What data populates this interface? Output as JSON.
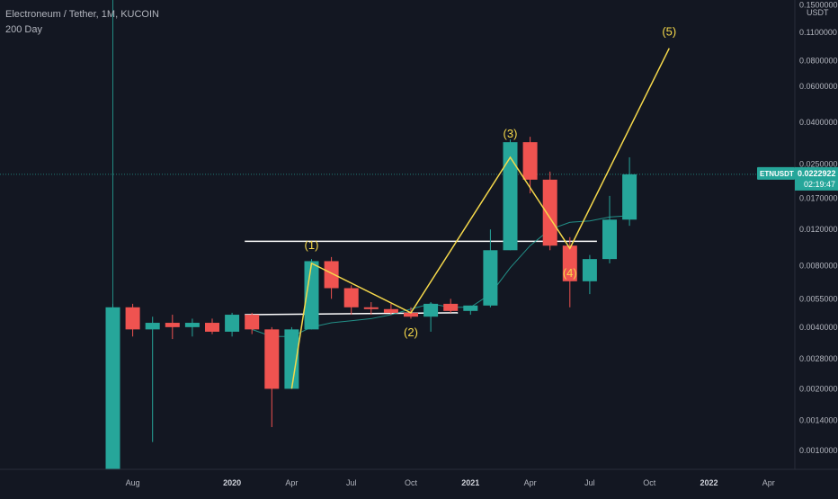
{
  "header": {
    "title": "Electroneum / Tether, 1M, KUCOIN",
    "indicator": "200 Day"
  },
  "price_axis": {
    "currency": "USDT",
    "ticks": [
      "0.1500000",
      "0.1100000",
      "0.0800000",
      "0.0600000",
      "0.0400000",
      "0.0250000",
      "0.0170000",
      "0.0120000",
      "0.0080000",
      "0.0055000",
      "0.0040000",
      "0.0028000",
      "0.0020000",
      "0.0014000",
      "0.0010000"
    ],
    "symbol_tag": "ETNUSDT",
    "last_price": "0.0222922",
    "countdown": "02:19:47"
  },
  "time_axis": {
    "labels": [
      "Aug",
      "2020",
      "Apr",
      "Jul",
      "Oct",
      "2021",
      "Apr",
      "Jul",
      "Oct",
      "2022",
      "Apr"
    ],
    "bold": [
      "2020",
      "2021",
      "2022"
    ]
  },
  "colors": {
    "background": "#131722",
    "up": "#26a69a",
    "down": "#ef5350",
    "ma": "#26a69a",
    "wave": "#f6d94b",
    "level": "#ffffff",
    "text": "#b2b5be"
  },
  "chart_data": {
    "type": "candlestick",
    "timeframe": "1M",
    "scale": "log",
    "candles": [
      {
        "t": "2019-07",
        "o": 0.00068,
        "h": 0.0052,
        "l": 0.00068,
        "c": 0.005
      },
      {
        "t": "2019-08",
        "o": 0.005,
        "h": 0.0052,
        "l": 0.0036,
        "c": 0.0039
      },
      {
        "t": "2019-09",
        "o": 0.0039,
        "h": 0.0045,
        "l": 0.0011,
        "c": 0.0042
      },
      {
        "t": "2019-10",
        "o": 0.0042,
        "h": 0.0046,
        "l": 0.0035,
        "c": 0.004
      },
      {
        "t": "2019-11",
        "o": 0.004,
        "h": 0.0044,
        "l": 0.0036,
        "c": 0.0042
      },
      {
        "t": "2019-12",
        "o": 0.0042,
        "h": 0.0044,
        "l": 0.0037,
        "c": 0.0038
      },
      {
        "t": "2020-01",
        "o": 0.0038,
        "h": 0.0047,
        "l": 0.0036,
        "c": 0.0046
      },
      {
        "t": "2020-02",
        "o": 0.0046,
        "h": 0.0047,
        "l": 0.0037,
        "c": 0.0039
      },
      {
        "t": "2020-03",
        "o": 0.0039,
        "h": 0.004,
        "l": 0.0013,
        "c": 0.002
      },
      {
        "t": "2020-04",
        "o": 0.002,
        "h": 0.004,
        "l": 0.002,
        "c": 0.0039
      },
      {
        "t": "2020-05",
        "o": 0.0039,
        "h": 0.0086,
        "l": 0.0039,
        "c": 0.0084
      },
      {
        "t": "2020-06",
        "o": 0.0084,
        "h": 0.0088,
        "l": 0.0055,
        "c": 0.0062
      },
      {
        "t": "2020-07",
        "o": 0.0062,
        "h": 0.0064,
        "l": 0.0046,
        "c": 0.005
      },
      {
        "t": "2020-08",
        "o": 0.005,
        "h": 0.0053,
        "l": 0.0046,
        "c": 0.0049
      },
      {
        "t": "2020-09",
        "o": 0.0049,
        "h": 0.0052,
        "l": 0.0046,
        "c": 0.0047
      },
      {
        "t": "2020-10",
        "o": 0.0047,
        "h": 0.005,
        "l": 0.0044,
        "c": 0.0045
      },
      {
        "t": "2020-11",
        "o": 0.0045,
        "h": 0.0053,
        "l": 0.0038,
        "c": 0.0052
      },
      {
        "t": "2020-12",
        "o": 0.0052,
        "h": 0.0055,
        "l": 0.0047,
        "c": 0.0048
      },
      {
        "t": "2021-01",
        "o": 0.0048,
        "h": 0.0051,
        "l": 0.0046,
        "c": 0.0051
      },
      {
        "t": "2021-02",
        "o": 0.0051,
        "h": 0.012,
        "l": 0.005,
        "c": 0.0095
      },
      {
        "t": "2021-03",
        "o": 0.0095,
        "h": 0.033,
        "l": 0.0095,
        "c": 0.032
      },
      {
        "t": "2021-04",
        "o": 0.032,
        "h": 0.034,
        "l": 0.018,
        "c": 0.021
      },
      {
        "t": "2021-05",
        "o": 0.021,
        "h": 0.023,
        "l": 0.0095,
        "c": 0.01
      },
      {
        "t": "2021-06",
        "o": 0.01,
        "h": 0.011,
        "l": 0.005,
        "c": 0.0067
      },
      {
        "t": "2021-07",
        "o": 0.0067,
        "h": 0.009,
        "l": 0.0058,
        "c": 0.0086
      },
      {
        "t": "2021-08",
        "o": 0.0086,
        "h": 0.0175,
        "l": 0.0082,
        "c": 0.0134
      },
      {
        "t": "2021-09",
        "o": 0.0134,
        "h": 0.027,
        "l": 0.0125,
        "c": 0.0223
      }
    ],
    "moving_average": {
      "name": "200 Day",
      "points": [
        {
          "t": "2020-02",
          "v": 0.0039
        },
        {
          "t": "2020-03",
          "v": 0.0036
        },
        {
          "t": "2020-04",
          "v": 0.0036
        },
        {
          "t": "2020-05",
          "v": 0.004
        },
        {
          "t": "2020-06",
          "v": 0.0042
        },
        {
          "t": "2020-07",
          "v": 0.0043
        },
        {
          "t": "2020-08",
          "v": 0.0044
        },
        {
          "t": "2020-09",
          "v": 0.0046
        },
        {
          "t": "2020-10",
          "v": 0.0049
        },
        {
          "t": "2020-11",
          "v": 0.0052
        },
        {
          "t": "2020-12",
          "v": 0.005
        },
        {
          "t": "2021-01",
          "v": 0.005
        },
        {
          "t": "2021-02",
          "v": 0.0058
        },
        {
          "t": "2021-03",
          "v": 0.0078
        },
        {
          "t": "2021-04",
          "v": 0.01
        },
        {
          "t": "2021-05",
          "v": 0.012
        },
        {
          "t": "2021-06",
          "v": 0.013
        },
        {
          "t": "2021-07",
          "v": 0.0132
        },
        {
          "t": "2021-08",
          "v": 0.0138
        },
        {
          "t": "2021-09",
          "v": 0.014
        }
      ]
    },
    "wave_points": [
      {
        "label": "",
        "t": "2020-04",
        "v": 0.002
      },
      {
        "label": "(1)",
        "t": "2020-05",
        "v": 0.0082
      },
      {
        "label": "(2)",
        "t": "2020-10",
        "v": 0.0047
      },
      {
        "label": "(3)",
        "t": "2021-03",
        "v": 0.027
      },
      {
        "label": "(4)",
        "t": "2021-06",
        "v": 0.0097
      },
      {
        "label": "(5)",
        "t": "2021-11",
        "v": 0.092
      }
    ],
    "level_lines": [
      {
        "t0": "2020-02",
        "t1": "2021-07",
        "v0": 0.0105,
        "v1": 0.0105
      },
      {
        "t0": "2020-02",
        "t1": "2020-12",
        "v0": 0.0046,
        "v1": 0.0047
      }
    ],
    "price_ticks": [
      0.15,
      0.11,
      0.08,
      0.06,
      0.04,
      0.025,
      0.017,
      0.012,
      0.008,
      0.0055,
      0.004,
      0.0028,
      0.002,
      0.0014,
      0.001
    ],
    "last_price": 0.0222922
  }
}
